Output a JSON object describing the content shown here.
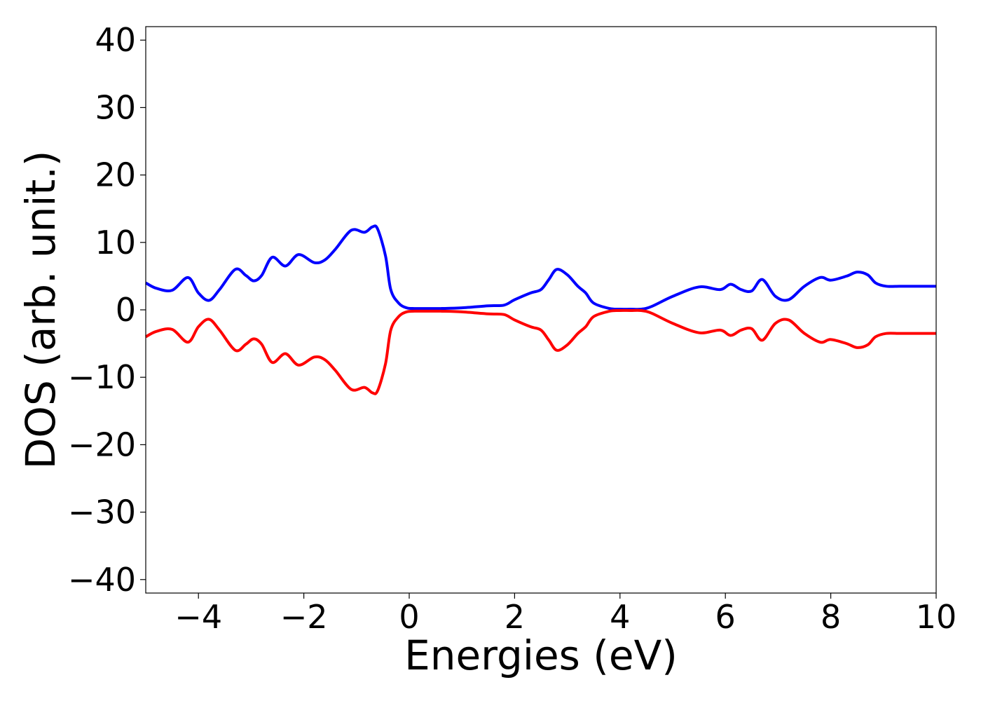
{
  "chart_data": {
    "type": "line",
    "xlabel": "Energies (eV)",
    "ylabel": "DOS (arb. unit.)",
    "xlim": [
      -5,
      10
    ],
    "ylim": [
      -42,
      42
    ],
    "x_ticks": [
      -4,
      -2,
      0,
      2,
      4,
      6,
      8,
      10
    ],
    "x_tick_labels": [
      "−4",
      "−2",
      "0",
      "2",
      "4",
      "6",
      "8",
      "10"
    ],
    "y_ticks": [
      40,
      30,
      20,
      10,
      0,
      -10,
      -20,
      -30,
      -40
    ],
    "y_tick_labels": [
      "40",
      "30",
      "20",
      "10",
      "0",
      "−10",
      "−20",
      "−30",
      "−40"
    ],
    "grid": false,
    "series": [
      {
        "color": "#0000ff",
        "x": [
          -5.0,
          -4.8,
          -4.5,
          -4.2,
          -4.0,
          -3.8,
          -3.6,
          -3.3,
          -3.1,
          -2.95,
          -2.8,
          -2.6,
          -2.35,
          -2.1,
          -1.8,
          -1.6,
          -1.4,
          -1.1,
          -0.85,
          -0.7,
          -0.6,
          -0.45,
          -0.35,
          -0.2,
          -0.05,
          0.1,
          0.3,
          0.6,
          1.0,
          1.5,
          1.8,
          2.0,
          2.3,
          2.5,
          2.65,
          2.8,
          3.0,
          3.2,
          3.35,
          3.5,
          3.8,
          4.0,
          4.2,
          4.4,
          4.6,
          5.0,
          5.5,
          5.9,
          6.1,
          6.3,
          6.5,
          6.7,
          6.95,
          7.2,
          7.5,
          7.8,
          8.0,
          8.3,
          8.5,
          8.7,
          8.85,
          9.05,
          9.3,
          9.5,
          9.7,
          9.85,
          10.0
        ],
        "y": [
          4.0,
          3.2,
          2.9,
          4.8,
          2.5,
          1.4,
          3.0,
          6.0,
          5.1,
          4.3,
          5.1,
          7.8,
          6.5,
          8.2,
          7.0,
          7.4,
          9.0,
          11.8,
          11.5,
          12.3,
          12.0,
          8.0,
          3.0,
          1.0,
          0.3,
          0.2,
          0.2,
          0.2,
          0.3,
          0.6,
          0.7,
          1.5,
          2.5,
          3.0,
          4.5,
          6.0,
          5.2,
          3.5,
          2.5,
          1.0,
          0.2,
          0.1,
          0.1,
          0.1,
          0.5,
          2.0,
          3.4,
          3.0,
          3.8,
          3.0,
          2.8,
          4.5,
          2.0,
          1.5,
          3.5,
          4.8,
          4.4,
          5.0,
          5.6,
          5.2,
          4.0,
          3.5,
          3.5,
          3.5,
          3.5,
          3.5,
          3.5
        ]
      },
      {
        "color": "#ff0000",
        "x": [
          -5.0,
          -4.8,
          -4.5,
          -4.2,
          -4.0,
          -3.8,
          -3.6,
          -3.3,
          -3.1,
          -2.95,
          -2.8,
          -2.6,
          -2.35,
          -2.1,
          -1.8,
          -1.6,
          -1.4,
          -1.1,
          -0.85,
          -0.7,
          -0.6,
          -0.45,
          -0.35,
          -0.2,
          -0.05,
          0.1,
          0.3,
          0.6,
          1.0,
          1.5,
          1.8,
          2.0,
          2.3,
          2.5,
          2.65,
          2.8,
          3.0,
          3.2,
          3.35,
          3.5,
          3.8,
          4.0,
          4.2,
          4.4,
          4.6,
          5.0,
          5.5,
          5.9,
          6.1,
          6.3,
          6.5,
          6.7,
          6.95,
          7.2,
          7.5,
          7.8,
          8.0,
          8.3,
          8.5,
          8.7,
          8.85,
          9.05,
          9.3,
          9.5,
          9.7,
          9.85,
          10.0
        ],
        "y": [
          -4.0,
          -3.2,
          -2.9,
          -4.8,
          -2.5,
          -1.4,
          -3.0,
          -6.0,
          -5.1,
          -4.3,
          -5.1,
          -7.8,
          -6.5,
          -8.2,
          -7.0,
          -7.4,
          -9.0,
          -11.8,
          -11.5,
          -12.3,
          -12.0,
          -8.0,
          -3.0,
          -1.0,
          -0.3,
          -0.2,
          -0.2,
          -0.2,
          -0.3,
          -0.6,
          -0.7,
          -1.5,
          -2.5,
          -3.0,
          -4.5,
          -6.0,
          -5.2,
          -3.5,
          -2.5,
          -1.0,
          -0.2,
          -0.1,
          -0.1,
          -0.1,
          -0.5,
          -2.0,
          -3.4,
          -3.0,
          -3.8,
          -3.0,
          -2.8,
          -4.5,
          -2.0,
          -1.5,
          -3.5,
          -4.8,
          -4.4,
          -5.0,
          -5.6,
          -5.2,
          -4.0,
          -3.5,
          -3.5,
          -3.5,
          -3.5,
          -3.5,
          -3.5
        ]
      }
    ]
  }
}
